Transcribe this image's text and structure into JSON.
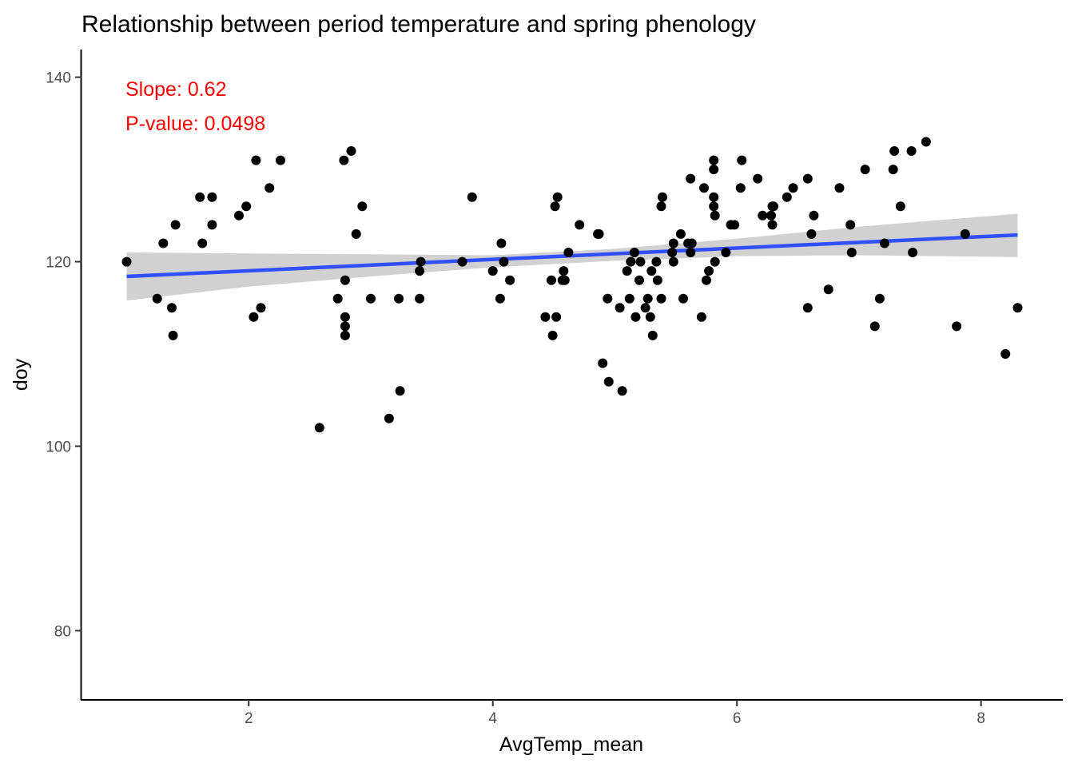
{
  "chart_data": {
    "type": "scatter",
    "title": "Relationship between period temperature and spring phenology",
    "xlabel": "AvgTemp_mean",
    "ylabel": "doy",
    "xlim": [
      0.63,
      8.67
    ],
    "ylim": [
      72.5,
      143.0
    ],
    "xticks": [
      2,
      4,
      6,
      8
    ],
    "xtick_labels": [
      "2",
      "4",
      "6",
      "8"
    ],
    "yticks": [
      80,
      100,
      120,
      140
    ],
    "ytick_labels": [
      "80",
      "100",
      "120",
      "140"
    ],
    "grid": false,
    "legend": "none",
    "annotations": [
      {
        "text": "Slope: 0.62",
        "color": "#ff0000"
      },
      {
        "text": "P-value: 0.0498",
        "color": "#ff0000"
      }
    ],
    "point_color": "#000000",
    "trend": {
      "color": "#3050ff",
      "band_color": "#cccccc",
      "line": [
        [
          1.0,
          118.4
        ],
        [
          8.3,
          122.9
        ]
      ],
      "upper": [
        [
          1.0,
          121.0
        ],
        [
          2.0,
          120.9
        ],
        [
          3.0,
          120.8
        ],
        [
          4.0,
          120.7
        ],
        [
          5.0,
          121.4
        ],
        [
          6.0,
          122.5
        ],
        [
          7.0,
          123.8
        ],
        [
          8.3,
          125.2
        ]
      ],
      "lower": [
        [
          1.0,
          115.8
        ],
        [
          2.0,
          117.3
        ],
        [
          3.0,
          118.4
        ],
        [
          4.0,
          119.4
        ],
        [
          5.0,
          120.1
        ],
        [
          6.0,
          120.6
        ],
        [
          7.0,
          120.7
        ],
        [
          8.3,
          120.5
        ]
      ]
    },
    "points": [
      [
        1.0,
        120
      ],
      [
        1.25,
        116
      ],
      [
        1.3,
        122
      ],
      [
        1.37,
        115
      ],
      [
        1.38,
        112
      ],
      [
        1.4,
        124
      ],
      [
        1.6,
        127
      ],
      [
        1.62,
        122
      ],
      [
        1.7,
        127
      ],
      [
        1.7,
        124
      ],
      [
        1.92,
        125
      ],
      [
        1.98,
        126
      ],
      [
        2.04,
        114
      ],
      [
        2.06,
        131
      ],
      [
        2.1,
        115
      ],
      [
        2.17,
        128
      ],
      [
        2.26,
        131
      ],
      [
        2.58,
        102
      ],
      [
        2.73,
        116
      ],
      [
        2.78,
        131
      ],
      [
        2.79,
        118
      ],
      [
        2.79,
        114
      ],
      [
        2.79,
        113
      ],
      [
        2.79,
        112
      ],
      [
        2.84,
        132
      ],
      [
        2.88,
        123
      ],
      [
        2.93,
        126
      ],
      [
        3.0,
        116
      ],
      [
        3.15,
        103
      ],
      [
        3.23,
        116
      ],
      [
        3.24,
        106
      ],
      [
        3.4,
        119
      ],
      [
        3.41,
        120
      ],
      [
        3.4,
        116
      ],
      [
        3.75,
        120
      ],
      [
        3.83,
        127
      ],
      [
        4.0,
        119
      ],
      [
        4.06,
        116
      ],
      [
        4.07,
        122
      ],
      [
        4.09,
        120
      ],
      [
        4.14,
        118
      ],
      [
        4.43,
        114
      ],
      [
        4.48,
        118
      ],
      [
        4.49,
        112
      ],
      [
        4.51,
        126
      ],
      [
        4.52,
        114
      ],
      [
        4.53,
        127
      ],
      [
        4.57,
        118
      ],
      [
        4.58,
        119
      ],
      [
        4.59,
        118
      ],
      [
        4.62,
        121
      ],
      [
        4.71,
        124
      ],
      [
        4.86,
        123
      ],
      [
        4.87,
        123
      ],
      [
        4.9,
        109
      ],
      [
        4.94,
        116
      ],
      [
        4.95,
        107
      ],
      [
        5.04,
        115
      ],
      [
        5.06,
        106
      ],
      [
        5.1,
        119
      ],
      [
        5.12,
        116
      ],
      [
        5.13,
        120
      ],
      [
        5.16,
        121
      ],
      [
        5.17,
        114
      ],
      [
        5.2,
        118
      ],
      [
        5.21,
        120
      ],
      [
        5.25,
        115
      ],
      [
        5.27,
        116
      ],
      [
        5.29,
        114
      ],
      [
        5.3,
        119
      ],
      [
        5.31,
        112
      ],
      [
        5.34,
        120
      ],
      [
        5.35,
        118
      ],
      [
        5.38,
        116
      ],
      [
        5.38,
        126
      ],
      [
        5.39,
        127
      ],
      [
        5.47,
        121
      ],
      [
        5.48,
        120
      ],
      [
        5.48,
        122
      ],
      [
        5.54,
        123
      ],
      [
        5.56,
        116
      ],
      [
        5.6,
        122
      ],
      [
        5.62,
        129
      ],
      [
        5.62,
        121
      ],
      [
        5.63,
        122
      ],
      [
        5.71,
        114
      ],
      [
        5.73,
        128
      ],
      [
        5.75,
        118
      ],
      [
        5.77,
        119
      ],
      [
        5.81,
        131
      ],
      [
        5.81,
        130
      ],
      [
        5.81,
        127
      ],
      [
        5.81,
        126
      ],
      [
        5.82,
        125
      ],
      [
        5.82,
        120
      ],
      [
        5.91,
        121
      ],
      [
        5.95,
        124
      ],
      [
        5.98,
        124
      ],
      [
        6.03,
        128
      ],
      [
        6.04,
        131
      ],
      [
        6.17,
        129
      ],
      [
        6.21,
        125
      ],
      [
        6.28,
        125
      ],
      [
        6.29,
        126
      ],
      [
        6.29,
        124
      ],
      [
        6.3,
        126
      ],
      [
        6.41,
        127
      ],
      [
        6.46,
        128
      ],
      [
        6.58,
        129
      ],
      [
        6.58,
        115
      ],
      [
        6.61,
        123
      ],
      [
        6.63,
        125
      ],
      [
        6.75,
        117
      ],
      [
        6.84,
        128
      ],
      [
        6.93,
        124
      ],
      [
        6.94,
        121
      ],
      [
        7.05,
        130
      ],
      [
        7.13,
        113
      ],
      [
        7.17,
        116
      ],
      [
        7.21,
        122
      ],
      [
        7.28,
        130
      ],
      [
        7.29,
        132
      ],
      [
        7.34,
        126
      ],
      [
        7.43,
        132
      ],
      [
        7.44,
        121
      ],
      [
        7.55,
        133
      ],
      [
        7.8,
        113
      ],
      [
        7.87,
        123
      ],
      [
        8.2,
        110
      ],
      [
        8.3,
        115
      ]
    ]
  }
}
